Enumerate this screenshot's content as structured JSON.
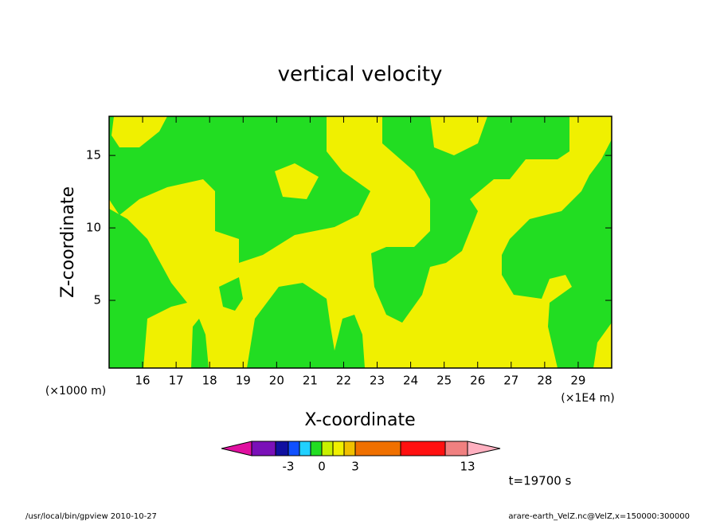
{
  "chart_data": {
    "type": "contour",
    "title": "vertical velocity",
    "x_label": "X-coordinate",
    "y_label": "Z-coordinate",
    "x_unit_left": "(×1000 m)",
    "x_unit_right": "(×1E4 m)",
    "time_label": "t=19700 s",
    "xlim": [
      15,
      30
    ],
    "ylim": [
      0.33,
      17.7
    ],
    "xticks": [
      16,
      17,
      18,
      19,
      20,
      21,
      22,
      23,
      24,
      25,
      26,
      27,
      28,
      29
    ],
    "yticks": [
      5,
      10,
      15
    ],
    "colorbar": {
      "colors": [
        "#e010a0",
        "#7a10b8",
        "#1010a0",
        "#1050ff",
        "#20d0ff",
        "#22dd22",
        "#c8f000",
        "#f0f000",
        "#f0c000",
        "#f07000",
        "#ff1010",
        "#f08080",
        "#ffb0c0"
      ],
      "ticks": [
        -3,
        0,
        3,
        13
      ]
    },
    "footer_left": "/usr/local/bin/gpview   2010-10-27",
    "footer_right": "arare-earth_VelZ.nc@VelZ,x=150000:300000"
  }
}
